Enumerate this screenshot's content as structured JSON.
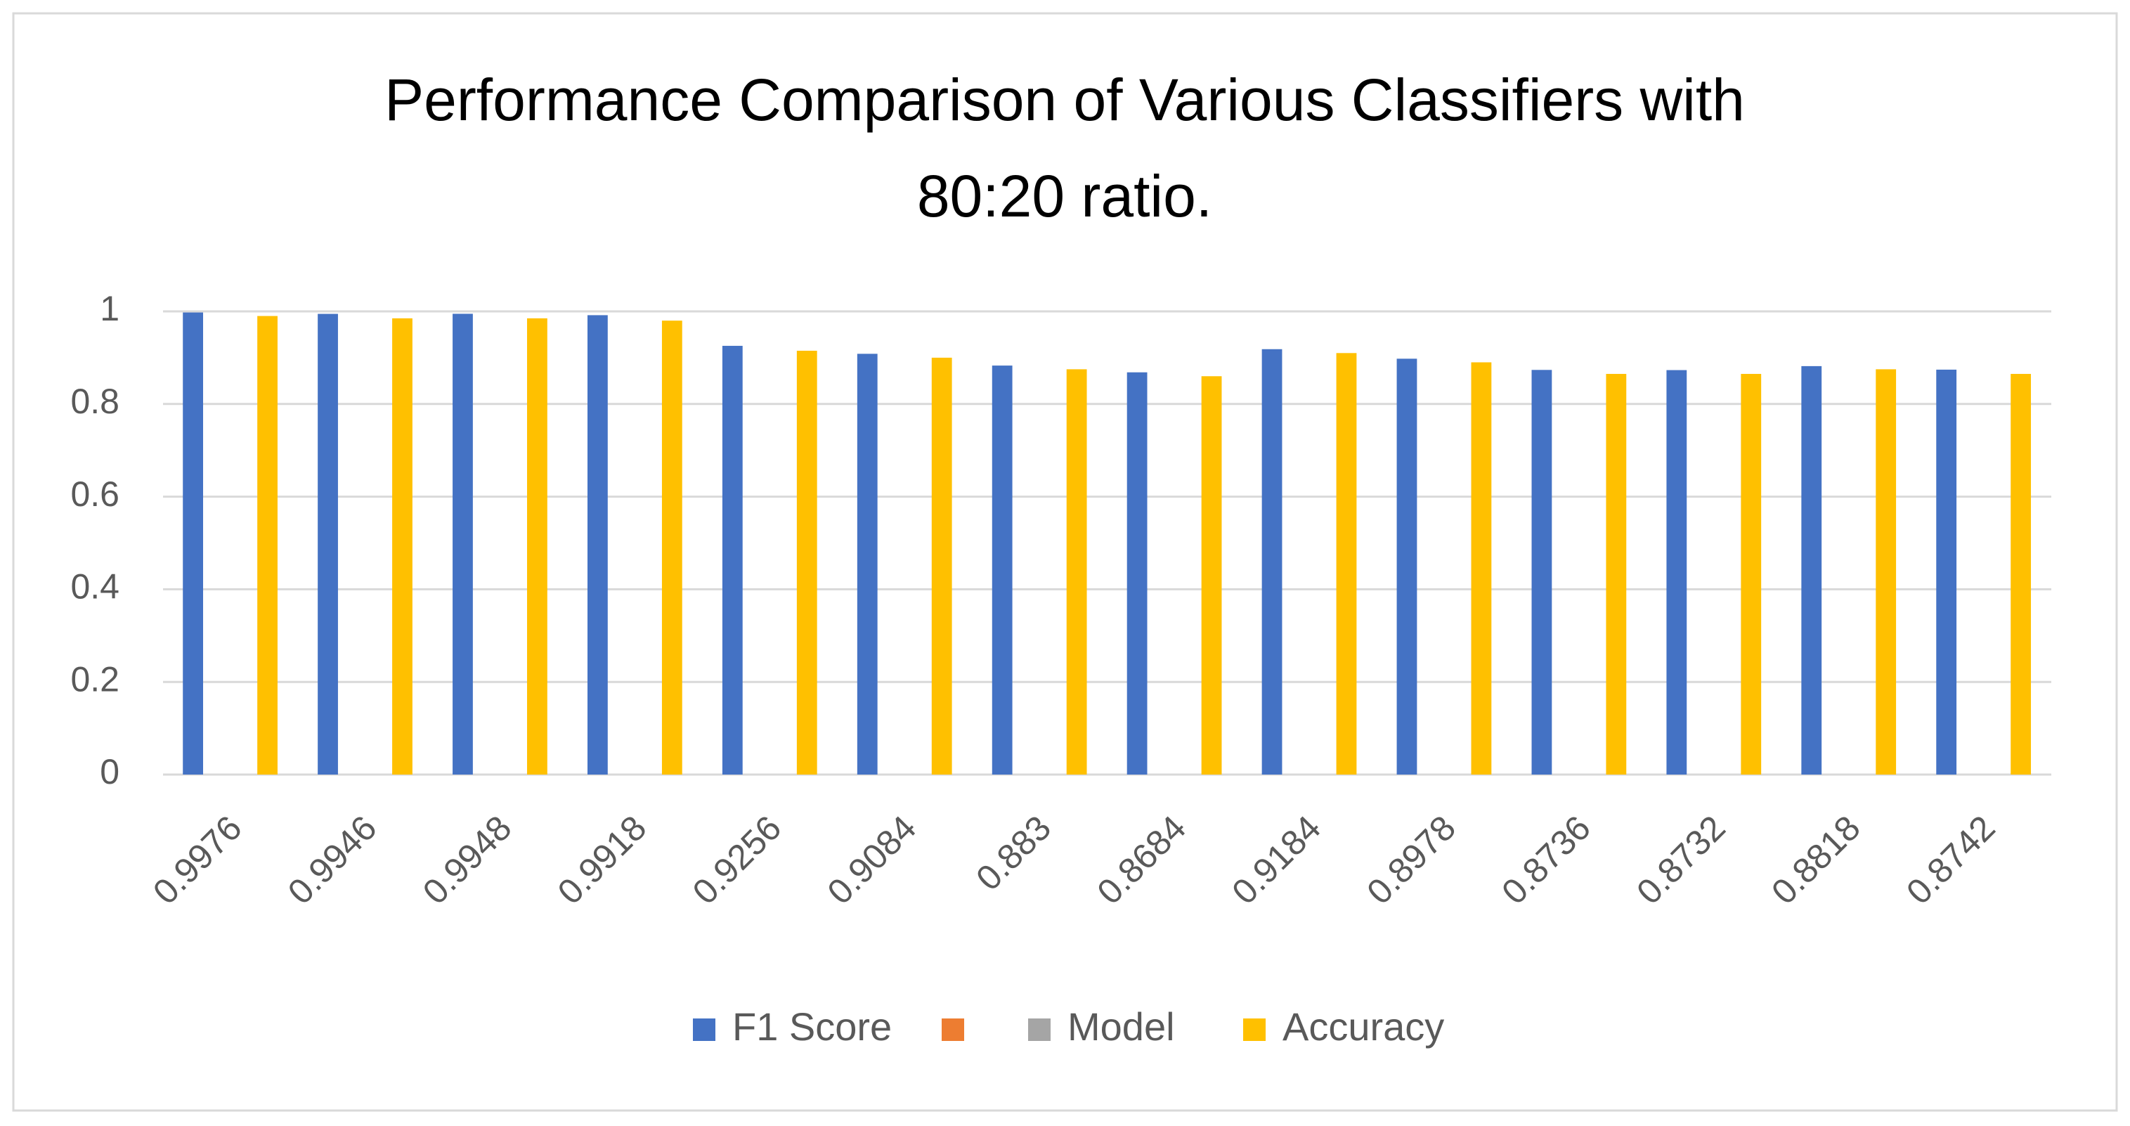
{
  "chart_data": {
    "type": "bar",
    "title": [
      "Performance Comparison of Various Classifiers with",
      "80:20 ratio."
    ],
    "categories": [
      "0.9976",
      "0.9946",
      "0.9948",
      "0.9918",
      "0.9256",
      "0.9084",
      "0.883",
      "0.8684",
      "0.9184",
      "0.8978",
      "0.8736",
      "0.8732",
      "0.8818",
      "0.8742"
    ],
    "series": [
      {
        "name": "F1 Score",
        "color": "#4472c4",
        "values": [
          0.9976,
          0.9946,
          0.9948,
          0.9918,
          0.9256,
          0.9084,
          0.883,
          0.8684,
          0.9184,
          0.8978,
          0.8736,
          0.8732,
          0.8818,
          0.8742
        ]
      },
      {
        "name": null,
        "color": "#ed7d31",
        "values": [
          null,
          null,
          null,
          null,
          null,
          null,
          null,
          null,
          null,
          null,
          null,
          null,
          null,
          null
        ]
      },
      {
        "name": "Model",
        "color": "#a5a5a5",
        "values": [
          null,
          null,
          null,
          null,
          null,
          null,
          null,
          null,
          null,
          null,
          null,
          null,
          null,
          null
        ]
      },
      {
        "name": "Accuracy",
        "color": "#ffc000",
        "values": [
          0.99,
          0.985,
          0.985,
          0.98,
          0.915,
          0.9,
          0.875,
          0.86,
          0.91,
          0.89,
          0.865,
          0.865,
          0.875,
          0.865
        ]
      }
    ],
    "ylim": [
      0,
      1
    ],
    "yticks": [
      0,
      0.2,
      0.4,
      0.6,
      0.8,
      1
    ],
    "grid": true,
    "legend": "bottom"
  }
}
